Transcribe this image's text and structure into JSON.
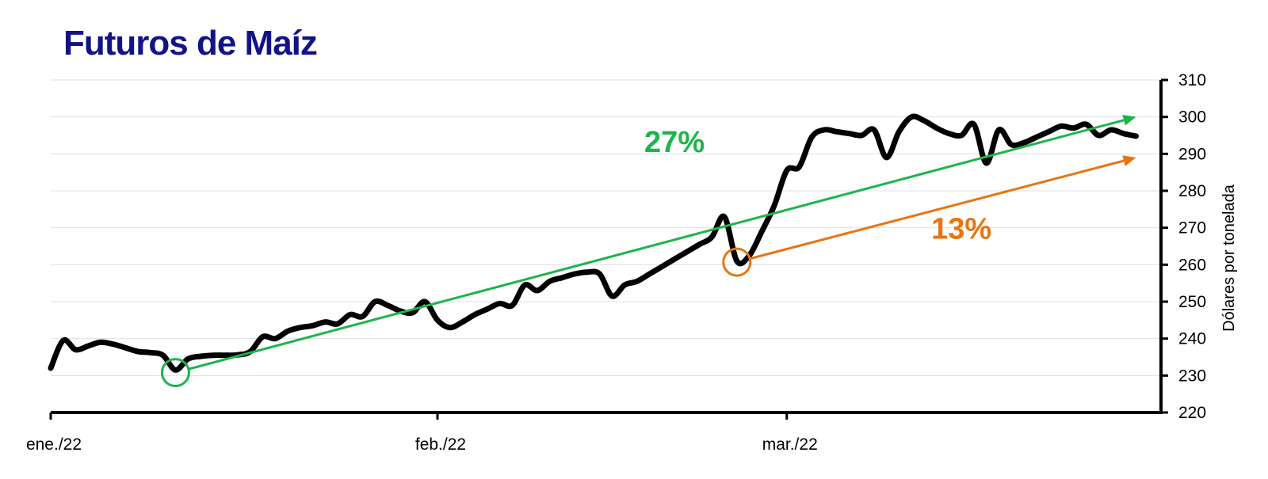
{
  "chart_data": {
    "type": "line",
    "title": "Futuros de  Maíz",
    "ylabel": "Dólares por tonelada",
    "xlabel": "",
    "ylim": [
      220,
      310
    ],
    "yticks": [
      220,
      230,
      240,
      250,
      260,
      270,
      280,
      290,
      300,
      310
    ],
    "y_axis_position": "right",
    "grid": true,
    "x_domain": [
      "2022-01-01",
      "2022-03-31"
    ],
    "xticks": [
      {
        "date": "2022-01-01",
        "label": "ene./22"
      },
      {
        "date": "2022-02-01",
        "label": "feb./22"
      },
      {
        "date": "2022-03-01",
        "label": "mar./22"
      }
    ],
    "series": [
      {
        "color": "#000000",
        "points": [
          [
            "2022-01-01",
            232
          ],
          [
            "2022-01-02",
            239.5
          ],
          [
            "2022-01-03",
            237
          ],
          [
            "2022-01-04",
            238
          ],
          [
            "2022-01-05",
            239
          ],
          [
            "2022-01-06",
            238.5
          ],
          [
            "2022-01-07",
            237.5
          ],
          [
            "2022-01-08",
            236.5
          ],
          [
            "2022-01-09",
            236.2
          ],
          [
            "2022-01-10",
            235.5
          ],
          [
            "2022-01-11",
            231.5
          ],
          [
            "2022-01-12",
            234.5
          ],
          [
            "2022-01-13",
            235.2
          ],
          [
            "2022-01-14",
            235.5
          ],
          [
            "2022-01-15",
            235.5
          ],
          [
            "2022-01-16",
            235.6
          ],
          [
            "2022-01-17",
            236.5
          ],
          [
            "2022-01-18",
            240.5
          ],
          [
            "2022-01-19",
            240
          ],
          [
            "2022-01-20",
            242
          ],
          [
            "2022-01-21",
            243
          ],
          [
            "2022-01-22",
            243.5
          ],
          [
            "2022-01-23",
            244.5
          ],
          [
            "2022-01-24",
            244
          ],
          [
            "2022-01-25",
            246.5
          ],
          [
            "2022-01-26",
            246
          ],
          [
            "2022-01-27",
            250
          ],
          [
            "2022-01-28",
            249
          ],
          [
            "2022-01-29",
            247.5
          ],
          [
            "2022-01-30",
            247
          ],
          [
            "2022-01-31",
            250
          ],
          [
            "2022-02-01",
            245
          ],
          [
            "2022-02-02",
            243
          ],
          [
            "2022-02-03",
            244.5
          ],
          [
            "2022-02-04",
            246.5
          ],
          [
            "2022-02-05",
            248
          ],
          [
            "2022-02-06",
            249.5
          ],
          [
            "2022-02-07",
            249
          ],
          [
            "2022-02-08",
            254.5
          ],
          [
            "2022-02-09",
            253
          ],
          [
            "2022-02-10",
            255.5
          ],
          [
            "2022-02-11",
            256.5
          ],
          [
            "2022-02-12",
            257.5
          ],
          [
            "2022-02-13",
            258
          ],
          [
            "2022-02-14",
            257.5
          ],
          [
            "2022-02-15",
            251.5
          ],
          [
            "2022-02-16",
            254.5
          ],
          [
            "2022-02-17",
            255.5
          ],
          [
            "2022-02-18",
            257.5
          ],
          [
            "2022-02-19",
            259.5
          ],
          [
            "2022-02-20",
            261.5
          ],
          [
            "2022-02-21",
            263.5
          ],
          [
            "2022-02-22",
            265.5
          ],
          [
            "2022-02-23",
            267.5
          ],
          [
            "2022-02-24",
            273
          ],
          [
            "2022-02-25",
            261
          ],
          [
            "2022-02-26",
            262.5
          ],
          [
            "2022-02-27",
            269
          ],
          [
            "2022-02-28",
            276
          ],
          [
            "2022-03-01",
            285.5
          ],
          [
            "2022-03-02",
            286.5
          ],
          [
            "2022-03-03",
            294.5
          ],
          [
            "2022-03-04",
            296.5
          ],
          [
            "2022-03-05",
            296
          ],
          [
            "2022-03-06",
            295.5
          ],
          [
            "2022-03-07",
            295
          ],
          [
            "2022-03-08",
            296.5
          ],
          [
            "2022-03-09",
            289
          ],
          [
            "2022-03-10",
            296
          ],
          [
            "2022-03-11",
            300
          ],
          [
            "2022-03-12",
            299
          ],
          [
            "2022-03-13",
            297
          ],
          [
            "2022-03-14",
            295.5
          ],
          [
            "2022-03-15",
            295
          ],
          [
            "2022-03-16",
            298
          ],
          [
            "2022-03-17",
            287.5
          ],
          [
            "2022-03-18",
            296.5
          ],
          [
            "2022-03-19",
            292.5
          ],
          [
            "2022-03-20",
            293
          ],
          [
            "2022-03-21",
            294.5
          ],
          [
            "2022-03-22",
            296
          ],
          [
            "2022-03-23",
            297.5
          ],
          [
            "2022-03-24",
            297
          ],
          [
            "2022-03-25",
            298
          ],
          [
            "2022-03-26",
            295
          ],
          [
            "2022-03-27",
            296.5
          ],
          [
            "2022-03-28",
            295.5
          ],
          [
            "2022-03-29",
            294.8
          ]
        ]
      }
    ],
    "annotations": [
      {
        "label": "27%",
        "color": "#1db54a",
        "from": [
          "2022-01-11",
          230.8
        ],
        "to": [
          "2022-03-29",
          300
        ],
        "label_at": [
          "2022-02-20",
          290.5
        ]
      },
      {
        "label": "13%",
        "color": "#e87511",
        "from": [
          "2022-02-25",
          260.7
        ],
        "to": [
          "2022-03-29",
          289
        ],
        "label_at": [
          "2022-03-15",
          267
        ]
      }
    ]
  }
}
